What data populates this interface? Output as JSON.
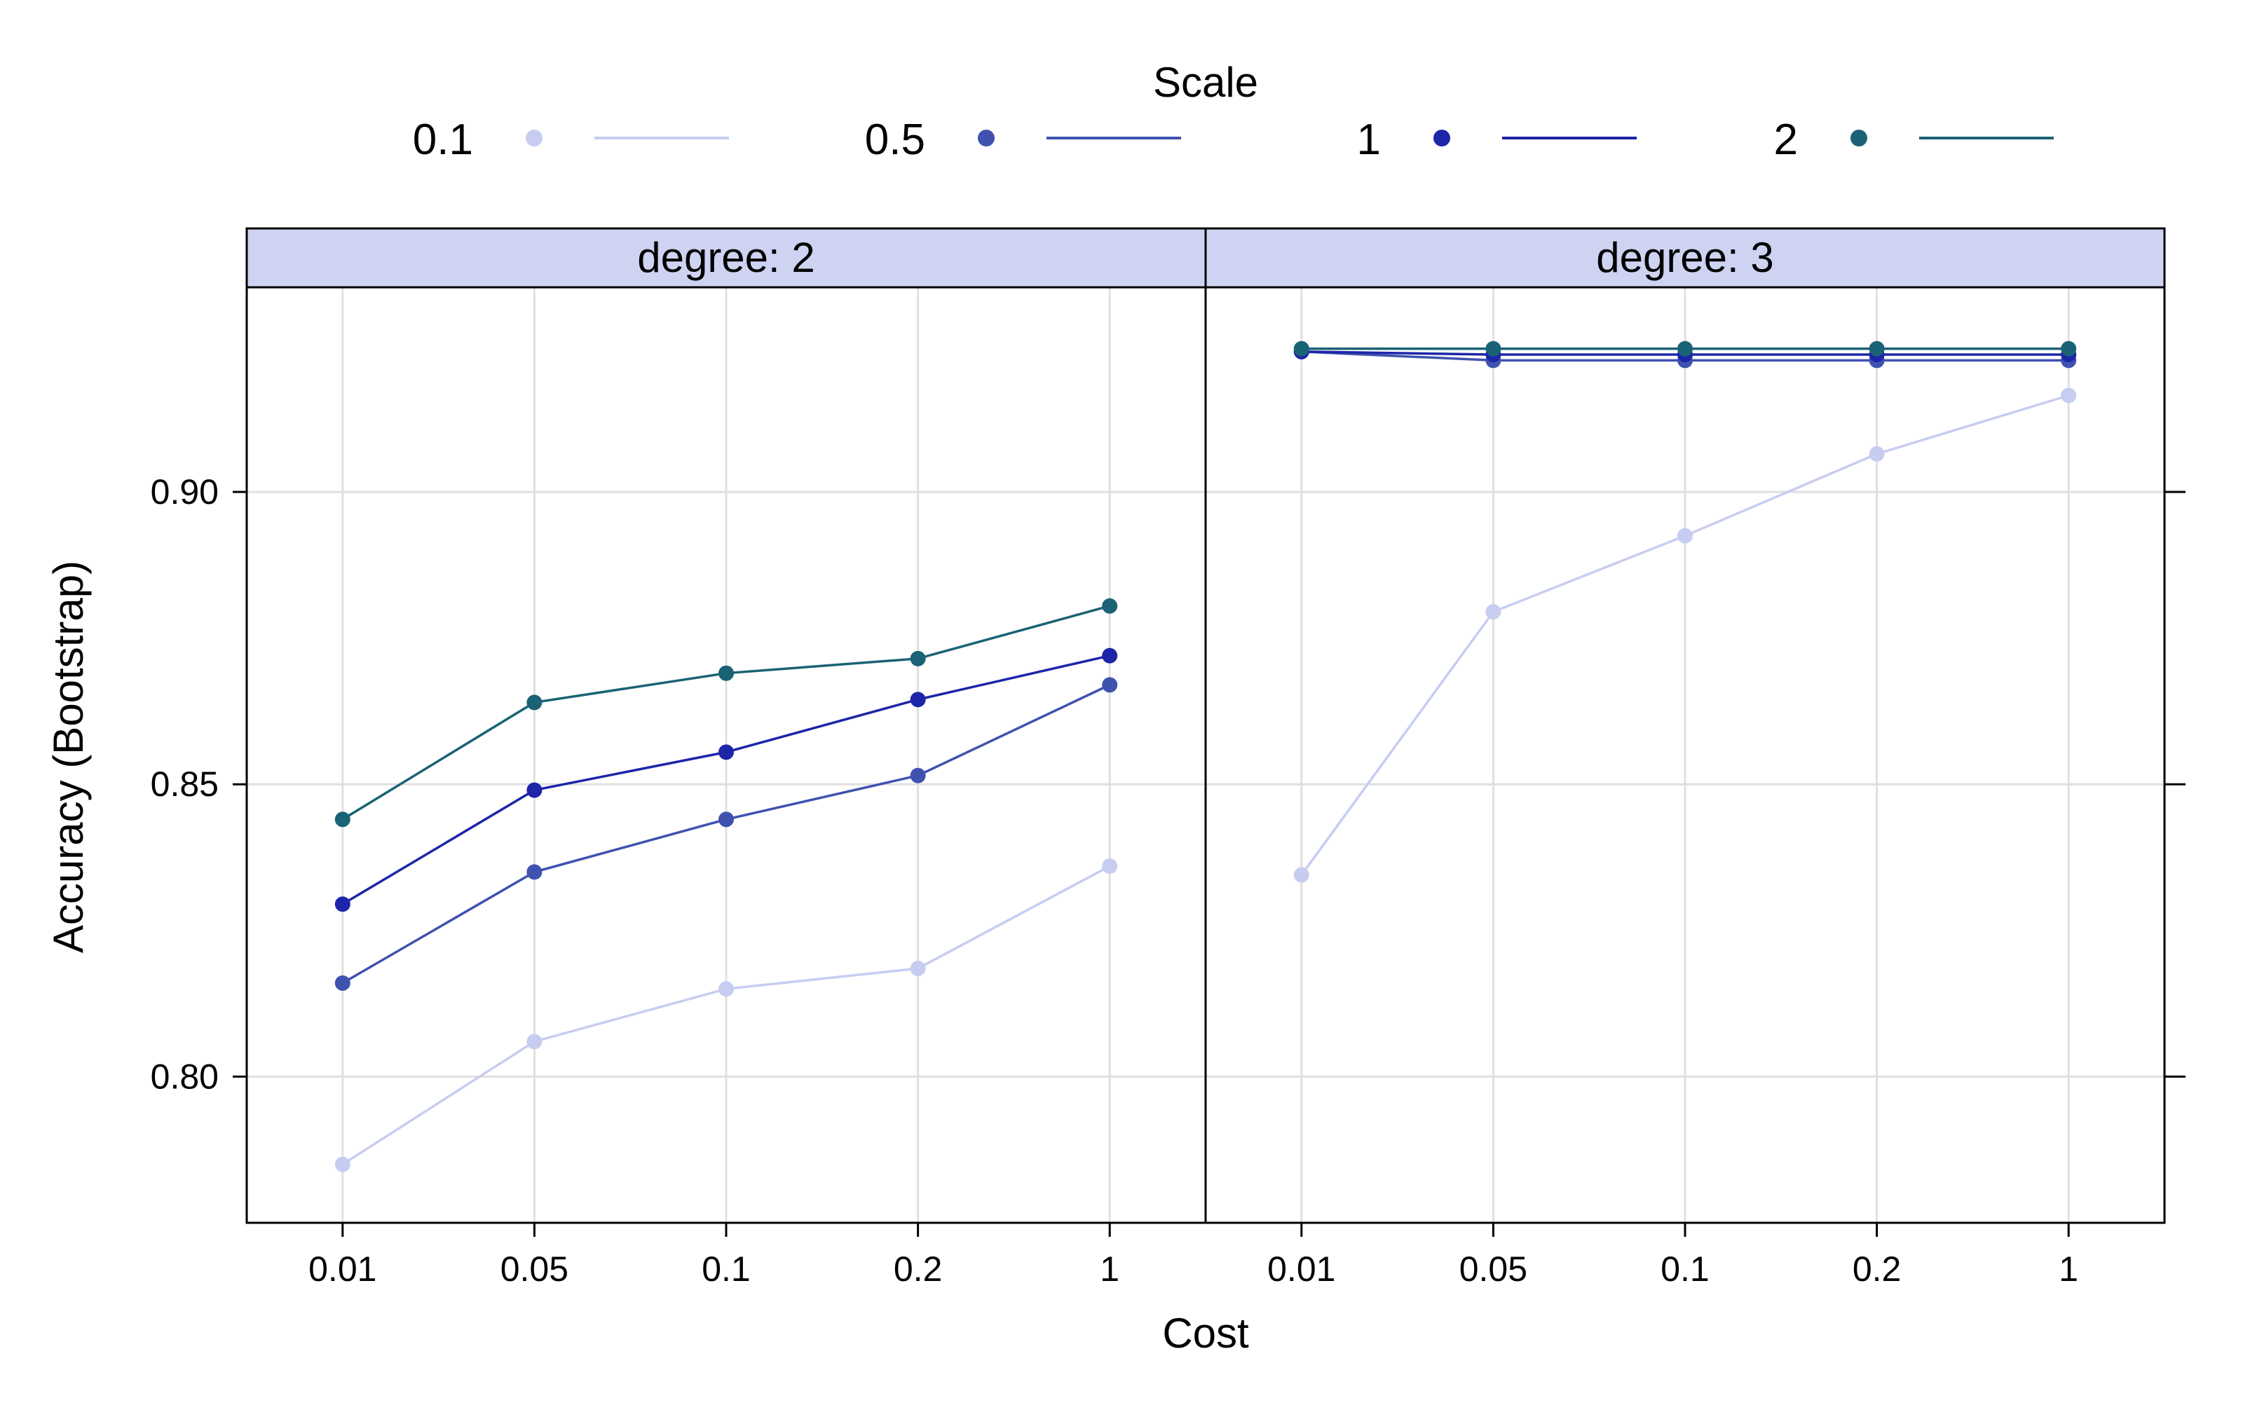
{
  "chart_data": {
    "type": "line",
    "xlabel": "Cost",
    "ylabel": "Accuracy (Bootstrap)",
    "legend": {
      "title": "Scale",
      "placement": "top",
      "entries": [
        "0.1",
        "0.5",
        "1",
        "2"
      ]
    },
    "categories": [
      "0.01",
      "0.05",
      "0.1",
      "0.2",
      "1"
    ],
    "ylim": [
      0.775,
      0.935
    ],
    "yticks": [
      "0.80",
      "0.85",
      "0.90"
    ],
    "ytick_values": [
      0.8,
      0.85,
      0.9
    ],
    "grid": true,
    "colors": {
      "0.1": "#c7cdf1",
      "0.5": "#3f52b0",
      "1": "#1d25a8",
      "2": "#1a6275",
      "strip": "#cfd3f2",
      "grid": "#e0e0e0"
    },
    "panels": [
      {
        "label": "degree: 2",
        "series": [
          {
            "name": "0.1",
            "values": [
              0.785,
              0.806,
              0.815,
              0.8185,
              0.836
            ]
          },
          {
            "name": "0.5",
            "values": [
              0.816,
              0.835,
              0.844,
              0.8515,
              0.867
            ]
          },
          {
            "name": "1",
            "values": [
              0.8295,
              0.849,
              0.8555,
              0.8645,
              0.872
            ]
          },
          {
            "name": "2",
            "values": [
              0.844,
              0.864,
              0.869,
              0.8715,
              0.8805
            ]
          }
        ]
      },
      {
        "label": "degree: 3",
        "series": [
          {
            "name": "0.1",
            "values": [
              0.8345,
              0.8795,
              0.8925,
              0.9065,
              0.9165
            ]
          },
          {
            "name": "0.5",
            "values": [
              0.924,
              0.9225,
              0.9225,
              0.9225,
              0.9225
            ]
          },
          {
            "name": "1",
            "values": [
              0.924,
              0.9235,
              0.9235,
              0.9235,
              0.9235
            ]
          },
          {
            "name": "2",
            "values": [
              0.9245,
              0.9245,
              0.9245,
              0.9245,
              0.9245
            ]
          }
        ]
      }
    ]
  }
}
